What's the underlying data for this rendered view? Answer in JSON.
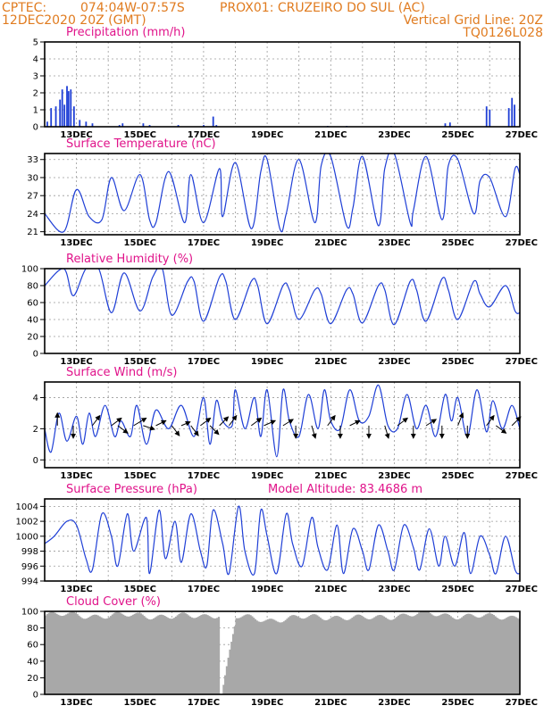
{
  "header": {
    "line1_left": "CPTEC:",
    "coords": "074:04W-07:57S",
    "station": "PROX01: CRUZEIRO DO SUL (AC)",
    "datetime": "12DEC2020 20Z (GMT)",
    "grid_note": "Vertical Grid Line: 20Z",
    "code": "TQ0126L028"
  },
  "colors": {
    "header": "#e07b1f",
    "panel_title": "#e0138a",
    "series": "#1f3fd6",
    "cloud": "#a8a8a8",
    "arrows": "#000000"
  },
  "x_axis": {
    "start": "12DEC2020 20Z",
    "end": "27DEC2020",
    "tick_labels": [
      "13DEC",
      "15DEC",
      "17DEC",
      "19DEC",
      "21DEC",
      "23DEC",
      "25DEC",
      "27DEC"
    ],
    "grid": "dotted, every 1 day at 20Z"
  },
  "chart_data": [
    {
      "type": "bar",
      "title": "Precipitation (mm/h)",
      "ylim": [
        0,
        5
      ],
      "yticks": [
        "0",
        "1",
        "2",
        "3",
        "4",
        "5"
      ],
      "x_days": [
        0.08,
        0.2,
        0.35,
        0.48,
        0.55,
        0.62,
        0.7,
        0.75,
        0.82,
        0.92,
        1.1,
        1.3,
        1.5,
        2.35,
        2.45,
        3.1,
        3.3,
        4.2,
        5.0,
        5.3,
        5.4,
        8.9,
        9.5,
        10.9,
        12.6,
        12.75,
        13.9,
        14.0,
        14.6,
        14.7,
        14.78
      ],
      "values": [
        0.3,
        1.1,
        1.2,
        1.6,
        2.2,
        1.3,
        2.4,
        2.1,
        2.2,
        1.2,
        0.4,
        0.3,
        0.2,
        0.1,
        0.2,
        0.2,
        0.1,
        0.1,
        0.1,
        0.6,
        0.1,
        0.05,
        0.05,
        0.05,
        0.2,
        0.25,
        1.2,
        1.0,
        1.1,
        1.7,
        1.3
      ]
    },
    {
      "type": "line",
      "title": "Surface Temperature (nC)",
      "ylim": [
        20.5,
        34
      ],
      "yticks": [
        "21",
        "24",
        "27",
        "30",
        "33"
      ],
      "series": [
        {
          "name": "",
          "x_days": [
            0.0,
            0.6,
            1.0,
            1.4,
            1.8,
            2.1,
            2.5,
            3.0,
            3.3,
            3.5,
            3.9,
            4.4,
            4.6,
            5.0,
            5.5,
            5.6,
            6.0,
            6.5,
            6.8,
            7.0,
            7.4,
            7.6,
            8.0,
            8.5,
            8.7,
            9.0,
            9.5,
            9.7,
            10.0,
            10.5,
            10.7,
            11.0,
            11.5,
            11.6,
            12.0,
            12.5,
            12.7,
            13.0,
            13.5,
            13.7,
            14.0,
            14.5,
            14.8,
            14.95
          ],
          "values": [
            24.0,
            21.0,
            28.0,
            23.5,
            23.0,
            30.0,
            24.5,
            30.5,
            23.0,
            22.5,
            31.0,
            22.5,
            30.5,
            22.5,
            31.5,
            23.5,
            32.5,
            21.5,
            31.0,
            33.0,
            21.5,
            24.0,
            33.0,
            22.5,
            32.0,
            33.5,
            22.0,
            25.0,
            33.5,
            22.0,
            31.5,
            34.0,
            22.5,
            24.5,
            33.5,
            23.0,
            32.0,
            33.0,
            24.0,
            29.5,
            30.0,
            23.5,
            31.5,
            30.5
          ]
        }
      ]
    },
    {
      "type": "line",
      "title": "Relative Humidity (%)",
      "ylim": [
        0,
        100
      ],
      "yticks": [
        "0",
        "20",
        "40",
        "60",
        "80",
        "100"
      ],
      "series": [
        {
          "name": "",
          "x_days": [
            0.0,
            0.6,
            0.9,
            1.3,
            1.7,
            2.1,
            2.5,
            3.0,
            3.4,
            3.7,
            4.0,
            4.5,
            4.7,
            5.0,
            5.5,
            5.7,
            6.0,
            6.5,
            6.7,
            7.0,
            7.5,
            7.7,
            8.0,
            8.5,
            8.7,
            9.0,
            9.5,
            9.7,
            10.0,
            10.5,
            10.7,
            11.0,
            11.5,
            11.7,
            12.0,
            12.5,
            12.7,
            13.0,
            13.5,
            13.7,
            14.0,
            14.5,
            14.8,
            14.95
          ],
          "values": [
            80.0,
            100.0,
            68.0,
            100.0,
            100.0,
            48.0,
            95.0,
            50.0,
            90.0,
            100.0,
            45.0,
            85.0,
            85.0,
            38.0,
            90.0,
            85.0,
            40.0,
            85.0,
            80.0,
            35.0,
            80.0,
            75.0,
            40.0,
            75.0,
            70.0,
            35.0,
            75.0,
            70.0,
            36.0,
            80.0,
            75.0,
            34.0,
            85.0,
            75.0,
            38.0,
            88.0,
            75.0,
            40.0,
            85.0,
            70.0,
            55.0,
            80.0,
            50.0,
            48.0
          ]
        }
      ]
    },
    {
      "type": "line",
      "title": "Surface Wind (m/s)",
      "ylim": [
        -0.5,
        5
      ],
      "yticks": [
        "0",
        "2",
        "4"
      ],
      "series": [
        {
          "name": "",
          "x_days": [
            0.0,
            0.2,
            0.45,
            0.7,
            1.0,
            1.2,
            1.4,
            1.6,
            1.9,
            2.2,
            2.4,
            2.7,
            2.9,
            3.2,
            3.5,
            3.9,
            4.3,
            4.7,
            5.0,
            5.2,
            5.4,
            5.6,
            5.9,
            6.0,
            6.3,
            6.6,
            6.8,
            7.0,
            7.3,
            7.5,
            7.7,
            8.0,
            8.3,
            8.6,
            8.8,
            9.0,
            9.3,
            9.6,
            9.9,
            10.2,
            10.5,
            10.8,
            11.1,
            11.4,
            11.7,
            12.0,
            12.3,
            12.6,
            12.8,
            13.0,
            13.3,
            13.6,
            13.9,
            14.1,
            14.4,
            14.7,
            14.95
          ],
          "values": [
            2.0,
            0.5,
            3.0,
            1.2,
            2.8,
            1.0,
            3.0,
            1.5,
            3.5,
            1.5,
            2.5,
            1.5,
            3.5,
            1.0,
            3.2,
            2.0,
            3.5,
            1.5,
            4.0,
            1.0,
            3.8,
            2.5,
            2.2,
            4.5,
            2.0,
            4.0,
            1.5,
            4.5,
            0.2,
            4.5,
            2.5,
            1.5,
            4.2,
            2.0,
            4.5,
            2.5,
            2.0,
            4.5,
            2.5,
            2.8,
            4.8,
            2.2,
            2.0,
            4.2,
            2.0,
            3.5,
            1.5,
            4.2,
            2.5,
            4.0,
            1.5,
            4.5,
            1.8,
            3.8,
            2.0,
            3.5,
            2.0
          ]
        }
      ],
      "arrows": [
        {
          "day": 0.4,
          "dx": 0.0,
          "dy": 1.0
        },
        {
          "day": 0.9,
          "dx": 0.0,
          "dy": -1.0
        },
        {
          "day": 1.5,
          "dx": 0.6,
          "dy": 0.8
        },
        {
          "day": 2.1,
          "dx": 0.8,
          "dy": 0.6
        },
        {
          "day": 2.3,
          "dx": 0.8,
          "dy": -0.6
        },
        {
          "day": 2.8,
          "dx": 1.0,
          "dy": 0.6
        },
        {
          "day": 3.1,
          "dx": 0.9,
          "dy": -0.3
        },
        {
          "day": 3.5,
          "dx": 0.8,
          "dy": 0.4
        },
        {
          "day": 4.0,
          "dx": 0.6,
          "dy": -0.8
        },
        {
          "day": 4.3,
          "dx": 0.7,
          "dy": 0.3
        },
        {
          "day": 4.6,
          "dx": 0.6,
          "dy": -0.8
        },
        {
          "day": 4.9,
          "dx": 0.8,
          "dy": 0.6
        },
        {
          "day": 5.2,
          "dx": 0.7,
          "dy": -0.7
        },
        {
          "day": 5.5,
          "dx": 0.7,
          "dy": 0.7
        },
        {
          "day": 5.8,
          "dx": 0.6,
          "dy": 0.8
        },
        {
          "day": 6.5,
          "dx": 0.8,
          "dy": 0.6
        },
        {
          "day": 6.9,
          "dx": 0.9,
          "dy": 0.4
        },
        {
          "day": 7.5,
          "dx": 0.8,
          "dy": 0.5
        },
        {
          "day": 7.9,
          "dx": 0.0,
          "dy": -1.0
        },
        {
          "day": 8.4,
          "dx": 0.3,
          "dy": -1.0
        },
        {
          "day": 8.9,
          "dx": 0.6,
          "dy": 0.8
        },
        {
          "day": 9.3,
          "dx": 0.0,
          "dy": -1.0
        },
        {
          "day": 9.6,
          "dx": 0.8,
          "dy": 0.4
        },
        {
          "day": 10.2,
          "dx": 0.0,
          "dy": -1.0
        },
        {
          "day": 10.7,
          "dx": 0.3,
          "dy": -1.0
        },
        {
          "day": 11.1,
          "dx": 0.8,
          "dy": 0.6
        },
        {
          "day": 11.6,
          "dx": 0.0,
          "dy": -1.0
        },
        {
          "day": 12.0,
          "dx": 0.8,
          "dy": 0.5
        },
        {
          "day": 12.5,
          "dx": 0.0,
          "dy": -1.0
        },
        {
          "day": 13.0,
          "dx": 0.4,
          "dy": 1.0
        },
        {
          "day": 13.3,
          "dx": 0.0,
          "dy": -1.0
        },
        {
          "day": 13.9,
          "dx": 0.6,
          "dy": 0.8
        },
        {
          "day": 14.2,
          "dx": 0.8,
          "dy": -0.6
        },
        {
          "day": 14.7,
          "dx": 0.7,
          "dy": 0.7
        }
      ]
    },
    {
      "type": "line",
      "title": "Surface Pressure (hPa)",
      "annotation": "Model Altitude: 83.4686 m",
      "ylim": [
        994,
        1005
      ],
      "yticks": [
        "994",
        "996",
        "998",
        "1000",
        "1002",
        "1004"
      ],
      "series": [
        {
          "name": "",
          "x_days": [
            0.0,
            0.3,
            0.7,
            1.0,
            1.3,
            1.5,
            1.8,
            2.1,
            2.3,
            2.6,
            2.8,
            3.2,
            3.3,
            3.6,
            3.8,
            4.1,
            4.3,
            4.6,
            4.9,
            5.1,
            5.3,
            5.6,
            5.8,
            6.1,
            6.3,
            6.6,
            6.8,
            7.0,
            7.3,
            7.6,
            7.8,
            8.1,
            8.4,
            8.6,
            8.9,
            9.2,
            9.4,
            9.7,
            10.0,
            10.2,
            10.5,
            10.8,
            11.0,
            11.3,
            11.6,
            11.8,
            12.1,
            12.4,
            12.6,
            12.9,
            13.2,
            13.4,
            13.7,
            14.0,
            14.2,
            14.5,
            14.8,
            14.95
          ],
          "values": [
            999.0,
            1000.0,
            1002.0,
            1001.5,
            997.0,
            995.5,
            1003.0,
            1000.0,
            996.0,
            1003.0,
            998.0,
            1002.5,
            995.0,
            1003.5,
            997.0,
            1002.0,
            996.5,
            1003.0,
            998.0,
            996.0,
            1003.5,
            999.0,
            995.0,
            1004.0,
            998.0,
            995.0,
            1003.5,
            1000.0,
            995.0,
            1003.0,
            999.0,
            996.0,
            1002.5,
            998.5,
            995.5,
            1001.5,
            995.0,
            1001.0,
            998.0,
            995.5,
            1001.5,
            998.0,
            995.5,
            1001.5,
            998.5,
            995.5,
            1001.0,
            996.0,
            1000.0,
            996.0,
            1000.5,
            995.0,
            1000.0,
            997.5,
            995.0,
            1000.0,
            995.5,
            995.0
          ]
        }
      ]
    },
    {
      "type": "bar",
      "title": "Cloud Cover (%)",
      "ylim": [
        0,
        100
      ],
      "yticks": [
        "0",
        "20",
        "40",
        "60",
        "80",
        "100"
      ],
      "description_of_values": "near-continuous bars ~85-100% across the period, with a gap to 0 at ~17.8DEC",
      "x_days": [
        0.0,
        1.0,
        2.0,
        3.0,
        4.0,
        5.0,
        5.5,
        5.55,
        6.0,
        7.0,
        8.0,
        9.0,
        10.0,
        11.0,
        12.0,
        13.0,
        14.0,
        14.95
      ],
      "values": [
        95.0,
        96.0,
        94.0,
        96.0,
        93.0,
        95.0,
        97.0,
        0.0,
        93.0,
        90.0,
        92.0,
        94.0,
        91.0,
        95.0,
        97.0,
        95.0,
        93.0,
        94.0
      ]
    }
  ]
}
